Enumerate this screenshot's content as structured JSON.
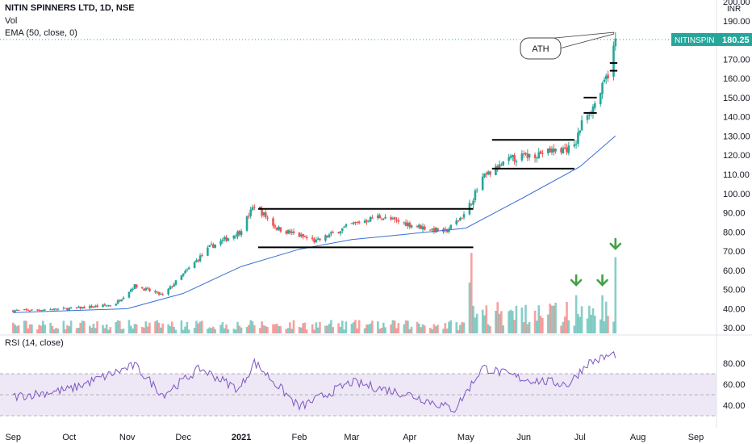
{
  "header": {
    "title": "NITIN SPINNERS LTD, 1D, NSE",
    "vol_label": "Vol",
    "ema_label": "EMA (50, close, 0)"
  },
  "rsi": {
    "label": "RSI (14, close)",
    "ticks": [
      "80.00",
      "60.00",
      "40.00"
    ]
  },
  "price_axis": {
    "currency": "INR",
    "ticks": [
      "200.00",
      "190.00",
      "180.00",
      "170.00",
      "160.00",
      "150.00",
      "140.00",
      "130.00",
      "120.00",
      "110.00",
      "100.00",
      "90.00",
      "80.00",
      "70.00",
      "60.00",
      "50.00",
      "40.00",
      "30.00"
    ]
  },
  "time_axis": {
    "ticks": [
      "Sep",
      "Oct",
      "Nov",
      "Dec",
      "2021",
      "Feb",
      "Mar",
      "Apr",
      "May",
      "Jun",
      "Jul",
      "Aug",
      "Sep"
    ]
  },
  "price_tag": {
    "symbol": "NITINSPIN",
    "value": "180.25",
    "color": "#26a69a"
  },
  "annotation": {
    "text": "ATH"
  },
  "colors": {
    "up": "#26a69a",
    "down": "#ef5350",
    "ema": "#3a6fd8",
    "rsi": "#7e57c2",
    "rsi_band": "#ede7f6",
    "arrow": "#43a047"
  },
  "chart_data": {
    "type": "candlestick",
    "symbol": "NITINSPIN",
    "exchange": "NSE",
    "interval": "1D",
    "currency": "INR",
    "x_range": [
      "2020-09",
      "2021-09"
    ],
    "y_range": [
      20,
      200
    ],
    "last_price": 180.25,
    "close_path": [
      {
        "date": "2020-09-01",
        "close": 39
      },
      {
        "date": "2020-10-01",
        "close": 40
      },
      {
        "date": "2020-10-25",
        "close": 42
      },
      {
        "date": "2020-11-05",
        "close": 52
      },
      {
        "date": "2020-11-20",
        "close": 47
      },
      {
        "date": "2020-12-01",
        "close": 58
      },
      {
        "date": "2020-12-15",
        "close": 72
      },
      {
        "date": "2020-12-31",
        "close": 80
      },
      {
        "date": "2021-01-08",
        "close": 94
      },
      {
        "date": "2021-01-20",
        "close": 82
      },
      {
        "date": "2021-02-10",
        "close": 75
      },
      {
        "date": "2021-03-01",
        "close": 84
      },
      {
        "date": "2021-03-15",
        "close": 88
      },
      {
        "date": "2021-04-05",
        "close": 83
      },
      {
        "date": "2021-04-20",
        "close": 80
      },
      {
        "date": "2021-05-01",
        "close": 90
      },
      {
        "date": "2021-05-10",
        "close": 108
      },
      {
        "date": "2021-05-25",
        "close": 118
      },
      {
        "date": "2021-06-15",
        "close": 122
      },
      {
        "date": "2021-06-28",
        "close": 124
      },
      {
        "date": "2021-07-03",
        "close": 140
      },
      {
        "date": "2021-07-08",
        "close": 145
      },
      {
        "date": "2021-07-13",
        "close": 155
      },
      {
        "date": "2021-07-17",
        "close": 165
      },
      {
        "date": "2021-07-20",
        "close": 180.25
      }
    ],
    "ema50_path": [
      {
        "date": "2020-09-01",
        "value": 38
      },
      {
        "date": "2020-11-01",
        "value": 40
      },
      {
        "date": "2020-12-01",
        "value": 48
      },
      {
        "date": "2021-01-01",
        "value": 62
      },
      {
        "date": "2021-02-01",
        "value": 71
      },
      {
        "date": "2021-03-01",
        "value": 76
      },
      {
        "date": "2021-04-01",
        "value": 79
      },
      {
        "date": "2021-05-01",
        "value": 82
      },
      {
        "date": "2021-06-01",
        "value": 98
      },
      {
        "date": "2021-07-01",
        "value": 114
      },
      {
        "date": "2021-07-20",
        "value": 130
      }
    ],
    "levels": [
      {
        "name": "range1-top",
        "value": 92,
        "from": "2021-01-10",
        "to": "2021-05-05"
      },
      {
        "name": "range1-bottom",
        "value": 72,
        "from": "2021-01-10",
        "to": "2021-05-05"
      },
      {
        "name": "range2-top",
        "value": 128,
        "from": "2021-05-15",
        "to": "2021-06-28"
      },
      {
        "name": "range2-bottom",
        "value": 113,
        "from": "2021-05-15",
        "to": "2021-06-28"
      },
      {
        "name": "range3-top",
        "value": 150,
        "from": "2021-07-03",
        "to": "2021-07-10"
      },
      {
        "name": "range3-bottom",
        "value": 142,
        "from": "2021-07-03",
        "to": "2021-07-10"
      },
      {
        "name": "range4-top",
        "value": 168,
        "from": "2021-07-17",
        "to": "2021-07-21"
      },
      {
        "name": "range4-bottom",
        "value": 164,
        "from": "2021-07-17",
        "to": "2021-07-21"
      }
    ],
    "rsi": {
      "length": 14,
      "band": [
        30,
        70
      ],
      "path": [
        {
          "date": "2020-09-01",
          "value": 48
        },
        {
          "date": "2020-10-01",
          "value": 55
        },
        {
          "date": "2020-11-05",
          "value": 78
        },
        {
          "date": "2020-11-20",
          "value": 50
        },
        {
          "date": "2020-12-10",
          "value": 75
        },
        {
          "date": "2020-12-31",
          "value": 55
        },
        {
          "date": "2021-01-08",
          "value": 81
        },
        {
          "date": "2021-02-01",
          "value": 38
        },
        {
          "date": "2021-03-01",
          "value": 62
        },
        {
          "date": "2021-04-01",
          "value": 50
        },
        {
          "date": "2021-04-25",
          "value": 36
        },
        {
          "date": "2021-05-10",
          "value": 76
        },
        {
          "date": "2021-06-01",
          "value": 65
        },
        {
          "date": "2021-06-25",
          "value": 60
        },
        {
          "date": "2021-07-05",
          "value": 80
        },
        {
          "date": "2021-07-20",
          "value": 89
        }
      ]
    }
  }
}
